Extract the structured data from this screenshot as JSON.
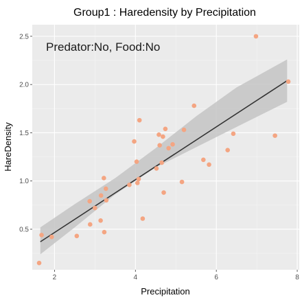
{
  "chart_data": {
    "type": "scatter",
    "title": "Group1 : Haredensity by Precipitation",
    "xlabel": "Precipitation",
    "ylabel": "HareDensity",
    "annotation": "Predator:No, Food:No",
    "xlim": [
      1.45,
      8.05
    ],
    "ylim": [
      0.08,
      2.62
    ],
    "x_ticks": [
      2,
      4,
      6,
      8
    ],
    "y_ticks": [
      0.5,
      1.0,
      1.5,
      2.0,
      2.5
    ],
    "x_tick_labels": [
      "2",
      "4",
      "6",
      "8"
    ],
    "y_tick_labels": [
      "0.5",
      "1.0",
      "1.5",
      "2.0",
      "2.5"
    ],
    "grid": true,
    "panel_color": "#ebebeb",
    "point_color": "#f4a582",
    "line_color": "#333333",
    "band_color": "#c4c4c4",
    "points": [
      {
        "x": 1.62,
        "y": 0.15
      },
      {
        "x": 1.68,
        "y": 0.44
      },
      {
        "x": 1.93,
        "y": 0.42
      },
      {
        "x": 2.55,
        "y": 0.43
      },
      {
        "x": 2.87,
        "y": 0.79
      },
      {
        "x": 2.88,
        "y": 0.55
      },
      {
        "x": 3.0,
        "y": 0.72
      },
      {
        "x": 3.15,
        "y": 0.85
      },
      {
        "x": 3.14,
        "y": 0.59
      },
      {
        "x": 3.22,
        "y": 1.03
      },
      {
        "x": 3.23,
        "y": 0.47
      },
      {
        "x": 3.27,
        "y": 0.92
      },
      {
        "x": 3.28,
        "y": 0.8
      },
      {
        "x": 3.85,
        "y": 0.96
      },
      {
        "x": 3.97,
        "y": 1.41
      },
      {
        "x": 4.03,
        "y": 1.2
      },
      {
        "x": 4.05,
        "y": 0.98
      },
      {
        "x": 4.08,
        "y": 1.02
      },
      {
        "x": 4.1,
        "y": 1.63
      },
      {
        "x": 4.18,
        "y": 0.61
      },
      {
        "x": 4.52,
        "y": 1.13
      },
      {
        "x": 4.58,
        "y": 1.48
      },
      {
        "x": 4.6,
        "y": 1.37
      },
      {
        "x": 4.65,
        "y": 1.19
      },
      {
        "x": 4.68,
        "y": 1.46
      },
      {
        "x": 4.7,
        "y": 0.88
      },
      {
        "x": 4.74,
        "y": 1.54
      },
      {
        "x": 4.82,
        "y": 1.34
      },
      {
        "x": 4.92,
        "y": 1.38
      },
      {
        "x": 5.15,
        "y": 0.99
      },
      {
        "x": 5.2,
        "y": 1.53
      },
      {
        "x": 5.45,
        "y": 1.78
      },
      {
        "x": 5.68,
        "y": 1.22
      },
      {
        "x": 5.82,
        "y": 1.17
      },
      {
        "x": 6.28,
        "y": 1.32
      },
      {
        "x": 6.42,
        "y": 1.49
      },
      {
        "x": 6.98,
        "y": 2.5
      },
      {
        "x": 7.45,
        "y": 1.47
      },
      {
        "x": 7.78,
        "y": 2.03
      }
    ],
    "fit": {
      "x0": 1.65,
      "x1": 7.75,
      "y0": 0.37,
      "y1": 2.04
    },
    "band": {
      "x": [
        1.65,
        2.5,
        3.5,
        4.5,
        5.5,
        6.5,
        7.75
      ],
      "lower": [
        0.24,
        0.52,
        0.86,
        1.14,
        1.35,
        1.56,
        1.82
      ],
      "upper": [
        0.52,
        0.76,
        1.03,
        1.34,
        1.67,
        1.97,
        2.26
      ]
    }
  }
}
